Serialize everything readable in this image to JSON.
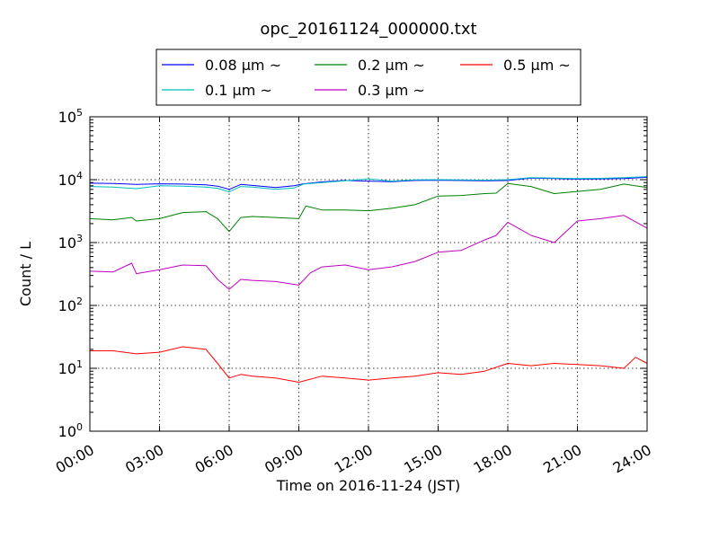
{
  "chart_data": {
    "type": "line",
    "title": "opc_20161124_000000.txt",
    "xlabel": "Time on 2016-11-24 (JST)",
    "ylabel": "Count / L",
    "x_unit": "hours",
    "xlim": [
      0,
      24
    ],
    "x_tick_values": [
      0,
      3,
      6,
      9,
      12,
      15,
      18,
      21,
      24
    ],
    "x_tick_labels": [
      "00:00",
      "03:00",
      "06:00",
      "09:00",
      "12:00",
      "15:00",
      "18:00",
      "21:00",
      "24:00"
    ],
    "y_scale": "log",
    "ylim": [
      1,
      100000
    ],
    "y_tick_values": [
      1,
      10,
      100,
      1000,
      10000,
      100000
    ],
    "y_tick_labels": [
      {
        "base": "10",
        "exp": "0"
      },
      {
        "base": "10",
        "exp": "1"
      },
      {
        "base": "10",
        "exp": "2"
      },
      {
        "base": "10",
        "exp": "3"
      },
      {
        "base": "10",
        "exp": "4"
      },
      {
        "base": "10",
        "exp": "5"
      }
    ],
    "grid": true,
    "legend_placement": "top-center",
    "legend_columns": 3,
    "series": [
      {
        "name": "0.08 μm ~",
        "color": "#0000ff",
        "x": [
          0,
          1,
          2,
          3,
          4,
          5,
          5.5,
          6,
          6.5,
          7,
          8,
          8.8,
          9.2,
          10,
          11,
          12,
          13,
          14,
          15,
          16,
          17,
          18,
          19,
          20,
          21,
          22,
          23,
          24
        ],
        "y": [
          8800,
          8700,
          8400,
          8600,
          8500,
          8300,
          7900,
          7000,
          8400,
          8100,
          7500,
          8000,
          8600,
          9200,
          9700,
          9500,
          9300,
          9700,
          9800,
          9700,
          9600,
          9700,
          10600,
          10400,
          10200,
          10300,
          10400,
          10900
        ]
      },
      {
        "name": "0.1 μm ~",
        "color": "#00bfbf",
        "x": [
          0,
          1,
          2,
          3,
          4,
          5,
          5.5,
          6,
          6.5,
          7,
          8,
          8.8,
          9.2,
          10,
          11,
          12,
          13,
          14,
          15,
          16,
          17,
          18,
          19,
          20,
          21,
          22,
          23,
          24
        ],
        "y": [
          7800,
          7600,
          7200,
          8000,
          7900,
          7600,
          7300,
          6400,
          7800,
          7600,
          7000,
          7400,
          8500,
          9000,
          9600,
          10300,
          9500,
          9900,
          10000,
          9900,
          9800,
          10000,
          10800,
          10600,
          10400,
          10500,
          10800,
          11200
        ]
      },
      {
        "name": "0.2 μm ~",
        "color": "#008000",
        "x": [
          0,
          1,
          1.8,
          2,
          3,
          4,
          5,
          5.5,
          6,
          6.5,
          7,
          8,
          9,
          9.3,
          10,
          11,
          12,
          13,
          14,
          15,
          16,
          17,
          17.5,
          18,
          19,
          20,
          21,
          22,
          23,
          24
        ],
        "y": [
          2400,
          2300,
          2500,
          2200,
          2400,
          3000,
          3100,
          2400,
          1500,
          2500,
          2600,
          2500,
          2400,
          3800,
          3300,
          3300,
          3200,
          3500,
          4000,
          5500,
          5600,
          6000,
          6100,
          8700,
          7800,
          6000,
          6500,
          7000,
          8500,
          7500
        ]
      },
      {
        "name": "0.3 μm ~",
        "color": "#bf00bf",
        "x": [
          0,
          1,
          1.8,
          2,
          3,
          4,
          5,
          5.5,
          6,
          6.5,
          7,
          8,
          9,
          9.5,
          10,
          11,
          12,
          13,
          14,
          15,
          16,
          17,
          17.5,
          18,
          19,
          20,
          21,
          22,
          23,
          24
        ],
        "y": [
          350,
          340,
          470,
          320,
          370,
          440,
          430,
          260,
          180,
          260,
          250,
          240,
          210,
          330,
          410,
          440,
          370,
          410,
          500,
          700,
          750,
          1100,
          1300,
          2100,
          1300,
          1000,
          2200,
          2400,
          2700,
          1700
        ]
      },
      {
        "name": "0.5 μm ~",
        "color": "#ff0000",
        "x": [
          0,
          1,
          2,
          3,
          4,
          5,
          5.5,
          6,
          6.5,
          7,
          8,
          9,
          10,
          11,
          12,
          13,
          14,
          15,
          16,
          17,
          18,
          19,
          20,
          21,
          22,
          23,
          23.5,
          24
        ],
        "y": [
          19,
          19,
          17,
          18,
          22,
          20,
          12,
          7,
          8,
          7.5,
          7,
          6,
          7.5,
          7,
          6.5,
          7,
          7.5,
          8.5,
          8,
          9,
          12,
          11,
          12,
          11.5,
          11,
          10,
          15,
          12
        ]
      }
    ]
  }
}
